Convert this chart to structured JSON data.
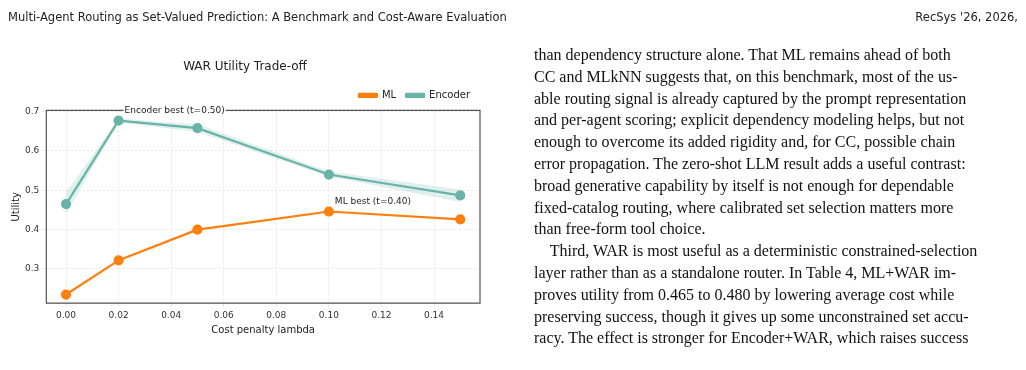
{
  "chart_data": [
    {
      "type": "line",
      "title": "WAR Utility Trade-off",
      "xlabel": "Cost penalty lambda",
      "ylabel": "Utility",
      "x": [
        0,
        0.02,
        0.05,
        0.1,
        0.15
      ],
      "series": [
        {
          "name": "ML",
          "color": "#ff7f0e",
          "values": [
            0.235,
            0.322,
            0.4,
            0.446,
            0.426
          ]
        },
        {
          "name": "Encoder",
          "color": "#69b3a9",
          "values": [
            0.465,
            0.677,
            0.658,
            0.54,
            0.487
          ],
          "lower": [
            0.44,
            0.672,
            0.648,
            0.535,
            0.47
          ],
          "upper": [
            0.495,
            0.682,
            0.668,
            0.548,
            0.502
          ]
        }
      ],
      "xlim": [
        -0.0075,
        0.1575
      ],
      "ylim": [
        0.213,
        0.703
      ],
      "xticks": [
        {
          "value": 0,
          "label": "0.00"
        },
        {
          "value": 0.02,
          "label": "0.02"
        },
        {
          "value": 0.04,
          "label": "0.04"
        },
        {
          "value": 0.06,
          "label": "0.06"
        },
        {
          "value": 0.08,
          "label": "0.08"
        },
        {
          "value": 0.1,
          "label": "0.10"
        },
        {
          "value": 0.12,
          "label": "0.12"
        },
        {
          "value": 0.14,
          "label": "0.14"
        }
      ],
      "yticks": [
        0.3,
        0.4,
        0.5,
        0.6,
        0.7
      ],
      "annotations": [
        {
          "text": "Encoder best (t=0.50)",
          "x": 0.02,
          "y": 0.677
        },
        {
          "text": "ML best (t=0.40)",
          "x": 0.1,
          "y": 0.446
        }
      ],
      "grid": true,
      "legend": "top right",
      "marker": "circle"
    },
    {
      "type": "other",
      "annotations": [
        "Multi-Agent Routing as Set-Valued Prediction: A Benchmark and Cost-Aware Evaluation",
        "RecSys '26, 2026,",
        "than dependency structure alone. That ML remains ahead of both",
        "CC and MLkNN suggests that, on this benchmark, most of the us-",
        "able routing signal is already captured by the prompt representation",
        "and per-agent scoring; explicit dependency modeling helps, but not",
        "enough to overcome its added rigidity and, for CC, possible chain",
        "error propagation. The zero-shot LLM result adds a useful contrast:",
        "broad generative capability by itself is not enough for dependable",
        "fixed-catalog routing, where calibrated set selection matters more",
        "than free-form tool choice.",
        "    Third, WAR is most useful as a deterministic constrained-selection",
        "layer rather than as a standalone router. In Table 4, ML+WAR im-",
        "proves utility from 0.465 to 0.480 by lowering average cost while",
        "preserving success, though it gives up some unconstrained set accu-",
        "racy. The effect is stronger for Encoder+WAR, which raises success"
      ]
    }
  ]
}
